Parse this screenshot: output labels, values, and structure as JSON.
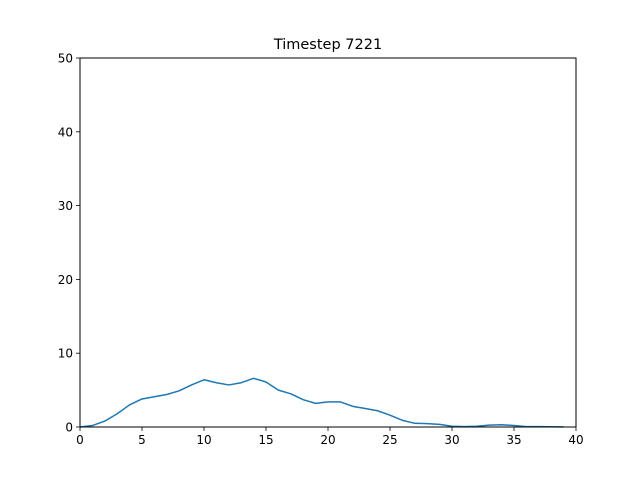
{
  "chart_data": {
    "type": "line",
    "title": "Timestep 7221",
    "xlabel": "",
    "ylabel": "",
    "xlim": [
      0,
      40
    ],
    "ylim": [
      0,
      50
    ],
    "xticks": [
      0,
      5,
      10,
      15,
      20,
      25,
      30,
      35,
      40
    ],
    "yticks": [
      0,
      10,
      20,
      30,
      40,
      50
    ],
    "grid": false,
    "series": [
      {
        "color": "#1f77b4",
        "x": [
          0,
          1,
          2,
          3,
          4,
          5,
          6,
          7,
          8,
          9,
          10,
          11,
          12,
          13,
          14,
          15,
          16,
          17,
          18,
          19,
          20,
          21,
          22,
          23,
          24,
          25,
          26,
          27,
          28,
          29,
          30,
          31,
          32,
          33,
          34,
          35,
          36,
          37,
          38,
          39
        ],
        "y": [
          0,
          0.2,
          0.8,
          1.8,
          3.0,
          3.8,
          4.1,
          4.4,
          4.9,
          5.7,
          6.4,
          6.0,
          5.7,
          6.0,
          6.6,
          6.1,
          5.0,
          4.5,
          3.7,
          3.2,
          3.4,
          3.4,
          2.8,
          2.5,
          2.2,
          1.6,
          0.9,
          0.5,
          0.45,
          0.35,
          0.1,
          0.05,
          0.1,
          0.25,
          0.3,
          0.2,
          0.05,
          0.05,
          0.03,
          0.02
        ]
      }
    ]
  }
}
